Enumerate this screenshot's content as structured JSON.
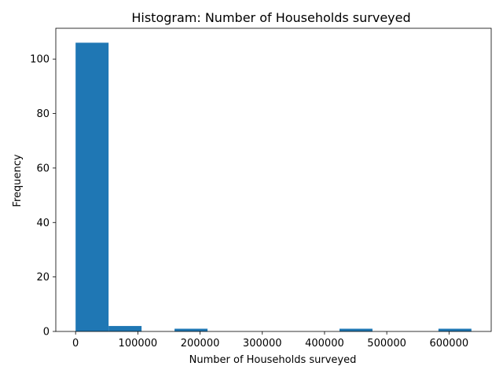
{
  "chart_data": {
    "type": "bar",
    "title": "Histogram: Number of Households surveyed",
    "xlabel": "Number of Households surveyed",
    "ylabel": "Frequency",
    "xlim": [
      -31800,
      667800
    ],
    "ylim": [
      0,
      111.3
    ],
    "xticks": [
      0,
      100000,
      200000,
      300000,
      400000,
      500000,
      600000
    ],
    "xtick_labels": [
      "0",
      "100000",
      "200000",
      "300000",
      "400000",
      "500000",
      "600000"
    ],
    "yticks": [
      0,
      20,
      40,
      60,
      80,
      100
    ],
    "ytick_labels": [
      "0",
      "20",
      "40",
      "60",
      "80",
      "100"
    ],
    "bins": [
      {
        "start": 0,
        "end": 53000,
        "count": 106
      },
      {
        "start": 53000,
        "end": 106000,
        "count": 2
      },
      {
        "start": 106000,
        "end": 159000,
        "count": 0
      },
      {
        "start": 159000,
        "end": 212000,
        "count": 1
      },
      {
        "start": 212000,
        "end": 265000,
        "count": 0
      },
      {
        "start": 265000,
        "end": 318000,
        "count": 0
      },
      {
        "start": 318000,
        "end": 371000,
        "count": 0
      },
      {
        "start": 371000,
        "end": 424000,
        "count": 0
      },
      {
        "start": 424000,
        "end": 477000,
        "count": 1
      },
      {
        "start": 477000,
        "end": 530000,
        "count": 0
      },
      {
        "start": 530000,
        "end": 583000,
        "count": 0
      },
      {
        "start": 583000,
        "end": 636000,
        "count": 1
      }
    ],
    "bar_color": "#1f77b4",
    "grid": false,
    "legend": false
  }
}
